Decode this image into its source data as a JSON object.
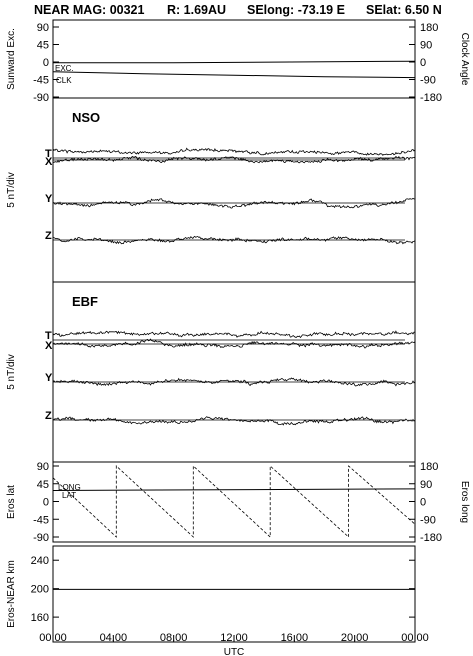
{
  "title": {
    "mission": "NEAR MAG: 00321",
    "r": "R: 1.69AU",
    "selong": "SElong:  -73.19 E",
    "selat": "SElat:    6.50 N"
  },
  "x_axis": {
    "label": "UTC",
    "ticks": [
      "00:00",
      "04:00",
      "08:00",
      "12:00",
      "16:00",
      "20:00",
      "00:00"
    ]
  },
  "chart_data": [
    {
      "type": "line",
      "panel": "sunward-clock",
      "ylabel_left": "Sunward Exc.",
      "ylabel_right": "Clock Angle",
      "left_ticks": [
        "90",
        "45",
        "0",
        "-45",
        "-90"
      ],
      "right_ticks": [
        "180",
        "90",
        "0",
        "-90",
        "-180"
      ],
      "ylim": [
        -90,
        90
      ],
      "x_hours": [
        0,
        24
      ],
      "annotations": [
        "EXC.",
        "CLK"
      ],
      "series": [
        {
          "name": "EXC.",
          "x": [
            0,
            8,
            24
          ],
          "values": [
            -2,
            -2,
            2
          ]
        },
        {
          "name": "CLK",
          "x": [
            0,
            6,
            12,
            18,
            24
          ],
          "values": [
            -25,
            -30,
            -34,
            -38,
            -40
          ]
        }
      ]
    },
    {
      "type": "line",
      "panel": "nso",
      "label": "NSO",
      "ylabel": "5 nT/div",
      "component_labels": [
        "T",
        "X",
        "Y",
        "Z"
      ]
    },
    {
      "type": "line",
      "panel": "ebf",
      "label": "EBF",
      "ylabel": "5 nT/div",
      "component_labels": [
        "T",
        "X",
        "Y",
        "Z"
      ]
    },
    {
      "type": "line",
      "panel": "eros-latlong",
      "ylabel_left": "Eros lat",
      "ylabel_right": "Eros long",
      "left_ticks": [
        "90",
        "45",
        "0",
        "-45",
        "-90"
      ],
      "right_ticks": [
        "180",
        "90",
        "0",
        "-90",
        "-180"
      ],
      "ylim": [
        -90,
        90
      ],
      "annotations": [
        "LONG",
        "LAT"
      ],
      "series": [
        {
          "name": "LAT",
          "x": [
            0,
            24
          ],
          "values": [
            28,
            32
          ]
        },
        {
          "name": "LONG",
          "x": [
            0,
            4.2,
            4.2,
            9.3,
            9.3,
            14.4,
            14.4,
            19.6,
            19.6,
            24
          ],
          "values": [
            120,
            -180,
            180,
            -180,
            180,
            -180,
            180,
            -180,
            180,
            -115
          ]
        }
      ]
    },
    {
      "type": "line",
      "panel": "eros-near-distance",
      "ylabel": "Eros-NEAR km",
      "ticks": [
        "240",
        "200",
        "160"
      ],
      "ylim": [
        125,
        260
      ],
      "series": [
        {
          "name": "Eros-NEAR km",
          "x": [
            0,
            24
          ],
          "values": [
            199,
            199
          ]
        }
      ]
    }
  ]
}
